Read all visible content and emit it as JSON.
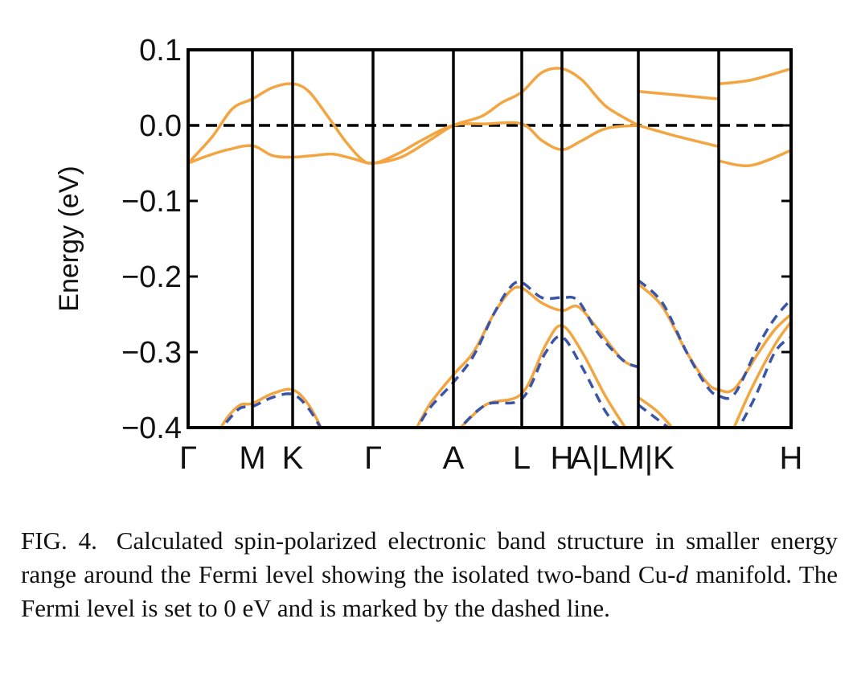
{
  "chart_data": {
    "type": "line",
    "title": "",
    "xlabel": "",
    "ylabel": "Energy (eV)",
    "ylim": [
      -0.4,
      0.1
    ],
    "yticks": [
      {
        "value": 0.1,
        "label": "0.1"
      },
      {
        "value": 0.0,
        "label": "0.0"
      },
      {
        "value": -0.1,
        "label": "−0.1"
      },
      {
        "value": -0.2,
        "label": "−0.2"
      },
      {
        "value": -0.3,
        "label": "−0.3"
      },
      {
        "value": -0.4,
        "label": "−0.4"
      }
    ],
    "xrange": [
      0,
      15
    ],
    "kpath_labels": [
      {
        "x": 0,
        "label": "Γ"
      },
      {
        "x": 1.6,
        "label": "M"
      },
      {
        "x": 2.6,
        "label": "K"
      },
      {
        "x": 4.6,
        "label": "Γ"
      },
      {
        "x": 6.6,
        "label": "A"
      },
      {
        "x": 8.3,
        "label": "L"
      },
      {
        "x": 9.3,
        "label": "H"
      },
      {
        "x": 10.8,
        "label": "A|LM|K"
      },
      {
        "x": 15,
        "label": "H"
      }
    ],
    "high_symmetry_lines": [
      1.6,
      2.6,
      4.6,
      6.6,
      8.3,
      9.3,
      11.2,
      13.2
    ],
    "fermi_level": 0.0,
    "grid": false,
    "legend": "none",
    "colors": {
      "spin_up": "#f2a540",
      "spin_down": "#3a55a8",
      "fermi": "#000000"
    },
    "series": [
      {
        "style": "solid-orange",
        "points": [
          [
            0,
            -0.05
          ],
          [
            0.5,
            -0.04
          ],
          [
            1.0,
            -0.032
          ],
          [
            1.6,
            -0.027
          ],
          [
            2.1,
            -0.04
          ],
          [
            2.6,
            -0.042
          ],
          [
            3.1,
            -0.04
          ],
          [
            3.6,
            -0.038
          ],
          [
            4.1,
            -0.044
          ],
          [
            4.6,
            -0.05
          ],
          [
            5.2,
            -0.038
          ],
          [
            5.8,
            -0.02
          ],
          [
            6.6,
            0.0
          ],
          [
            7.4,
            0.002
          ],
          [
            8.3,
            0.002
          ],
          [
            8.8,
            -0.02
          ],
          [
            9.3,
            -0.032
          ],
          [
            9.8,
            -0.02
          ],
          [
            10.4,
            -0.004
          ],
          [
            11.2,
            0.0
          ]
        ]
      },
      {
        "style": "solid-orange",
        "points": [
          [
            0,
            -0.05
          ],
          [
            0.6,
            -0.015
          ],
          [
            1.1,
            0.022
          ],
          [
            1.6,
            0.035
          ],
          [
            2.1,
            0.05
          ],
          [
            2.6,
            0.055
          ],
          [
            3.0,
            0.045
          ],
          [
            3.5,
            0.01
          ],
          [
            3.9,
            -0.02
          ],
          [
            4.3,
            -0.044
          ],
          [
            4.6,
            -0.05
          ],
          [
            5.3,
            -0.042
          ],
          [
            6.0,
            -0.02
          ],
          [
            6.6,
            0.0
          ],
          [
            7.3,
            0.012
          ],
          [
            7.8,
            0.03
          ],
          [
            8.3,
            0.044
          ],
          [
            8.8,
            0.07
          ],
          [
            9.3,
            0.075
          ],
          [
            9.8,
            0.06
          ],
          [
            10.4,
            0.025
          ],
          [
            11.2,
            0.0
          ]
        ]
      },
      {
        "style": "solid-orange",
        "points": [
          [
            11.2,
            0.045
          ],
          [
            12.2,
            0.04
          ],
          [
            13.2,
            0.035
          ]
        ]
      },
      {
        "style": "solid-orange",
        "points": [
          [
            11.2,
            0.0
          ],
          [
            12.2,
            -0.015
          ],
          [
            13.2,
            -0.028
          ]
        ]
      },
      {
        "style": "solid-orange",
        "points": [
          [
            13.2,
            0.055
          ],
          [
            14.0,
            0.06
          ],
          [
            15.0,
            0.075
          ]
        ]
      },
      {
        "style": "solid-orange",
        "points": [
          [
            13.2,
            -0.047
          ],
          [
            14.0,
            -0.053
          ],
          [
            15.0,
            -0.033
          ]
        ]
      },
      {
        "style": "solid-orange",
        "points": [
          [
            0.7,
            -0.41
          ],
          [
            1.0,
            -0.385
          ],
          [
            1.3,
            -0.37
          ],
          [
            1.6,
            -0.368
          ],
          [
            2.1,
            -0.355
          ],
          [
            2.6,
            -0.35
          ],
          [
            3.0,
            -0.37
          ],
          [
            3.4,
            -0.41
          ]
        ]
      },
      {
        "style": "dashed-blue",
        "points": [
          [
            0.7,
            -0.41
          ],
          [
            1.0,
            -0.39
          ],
          [
            1.3,
            -0.374
          ],
          [
            1.6,
            -0.372
          ],
          [
            2.1,
            -0.36
          ],
          [
            2.6,
            -0.356
          ],
          [
            3.0,
            -0.375
          ],
          [
            3.4,
            -0.41
          ]
        ]
      },
      {
        "style": "solid-orange",
        "points": [
          [
            5.6,
            -0.41
          ],
          [
            6.0,
            -0.37
          ],
          [
            6.6,
            -0.33
          ],
          [
            7.1,
            -0.3
          ],
          [
            7.6,
            -0.25
          ],
          [
            8.0,
            -0.22
          ],
          [
            8.3,
            -0.215
          ],
          [
            8.8,
            -0.235
          ],
          [
            9.3,
            -0.245
          ],
          [
            9.7,
            -0.24
          ],
          [
            10.2,
            -0.27
          ],
          [
            10.8,
            -0.31
          ],
          [
            11.2,
            -0.32
          ]
        ]
      },
      {
        "style": "dashed-blue",
        "points": [
          [
            5.6,
            -0.41
          ],
          [
            6.0,
            -0.375
          ],
          [
            6.6,
            -0.34
          ],
          [
            7.1,
            -0.305
          ],
          [
            7.6,
            -0.25
          ],
          [
            8.0,
            -0.215
          ],
          [
            8.3,
            -0.208
          ],
          [
            8.8,
            -0.228
          ],
          [
            9.3,
            -0.228
          ],
          [
            9.7,
            -0.232
          ],
          [
            10.2,
            -0.275
          ],
          [
            10.8,
            -0.31
          ],
          [
            11.2,
            -0.32
          ]
        ]
      },
      {
        "style": "solid-orange",
        "points": [
          [
            6.6,
            -0.41
          ],
          [
            7.4,
            -0.37
          ],
          [
            8.3,
            -0.355
          ],
          [
            8.9,
            -0.29
          ],
          [
            9.3,
            -0.265
          ],
          [
            9.8,
            -0.3
          ],
          [
            10.4,
            -0.36
          ],
          [
            11.0,
            -0.41
          ]
        ]
      },
      {
        "style": "dashed-blue",
        "points": [
          [
            6.6,
            -0.41
          ],
          [
            7.4,
            -0.37
          ],
          [
            8.3,
            -0.362
          ],
          [
            8.9,
            -0.3
          ],
          [
            9.3,
            -0.28
          ],
          [
            9.8,
            -0.32
          ],
          [
            10.4,
            -0.38
          ],
          [
            10.9,
            -0.41
          ]
        ]
      },
      {
        "style": "solid-orange",
        "points": [
          [
            11.2,
            -0.21
          ],
          [
            11.8,
            -0.24
          ],
          [
            12.4,
            -0.3
          ],
          [
            12.9,
            -0.34
          ],
          [
            13.2,
            -0.35
          ],
          [
            13.6,
            -0.348
          ],
          [
            14.2,
            -0.3
          ],
          [
            14.6,
            -0.27
          ],
          [
            15.0,
            -0.25
          ]
        ]
      },
      {
        "style": "dashed-blue",
        "points": [
          [
            11.2,
            -0.205
          ],
          [
            11.8,
            -0.235
          ],
          [
            12.4,
            -0.3
          ],
          [
            12.9,
            -0.345
          ],
          [
            13.2,
            -0.358
          ],
          [
            13.6,
            -0.355
          ],
          [
            14.2,
            -0.29
          ],
          [
            14.6,
            -0.255
          ],
          [
            15.0,
            -0.23
          ]
        ]
      },
      {
        "style": "solid-orange",
        "points": [
          [
            11.2,
            -0.36
          ],
          [
            11.7,
            -0.38
          ],
          [
            12.2,
            -0.41
          ]
        ]
      },
      {
        "style": "dashed-blue",
        "points": [
          [
            11.2,
            -0.37
          ],
          [
            11.7,
            -0.39
          ],
          [
            12.2,
            -0.41
          ]
        ]
      },
      {
        "style": "solid-orange",
        "points": [
          [
            13.5,
            -0.41
          ],
          [
            14.0,
            -0.35
          ],
          [
            14.6,
            -0.29
          ],
          [
            15.0,
            -0.26
          ]
        ]
      },
      {
        "style": "dashed-blue",
        "points": [
          [
            13.6,
            -0.41
          ],
          [
            14.1,
            -0.36
          ],
          [
            14.6,
            -0.3
          ],
          [
            15.0,
            -0.28
          ]
        ]
      }
    ]
  },
  "caption": {
    "fig": "FIG. 4.",
    "part1": "Calculated spin-polarized electronic band structure in smaller energy range around the Fermi level showing the isolated two-band Cu-",
    "italic": "d",
    "part2": " manifold. The Fermi level is set to 0 eV and is marked by the dashed line."
  }
}
